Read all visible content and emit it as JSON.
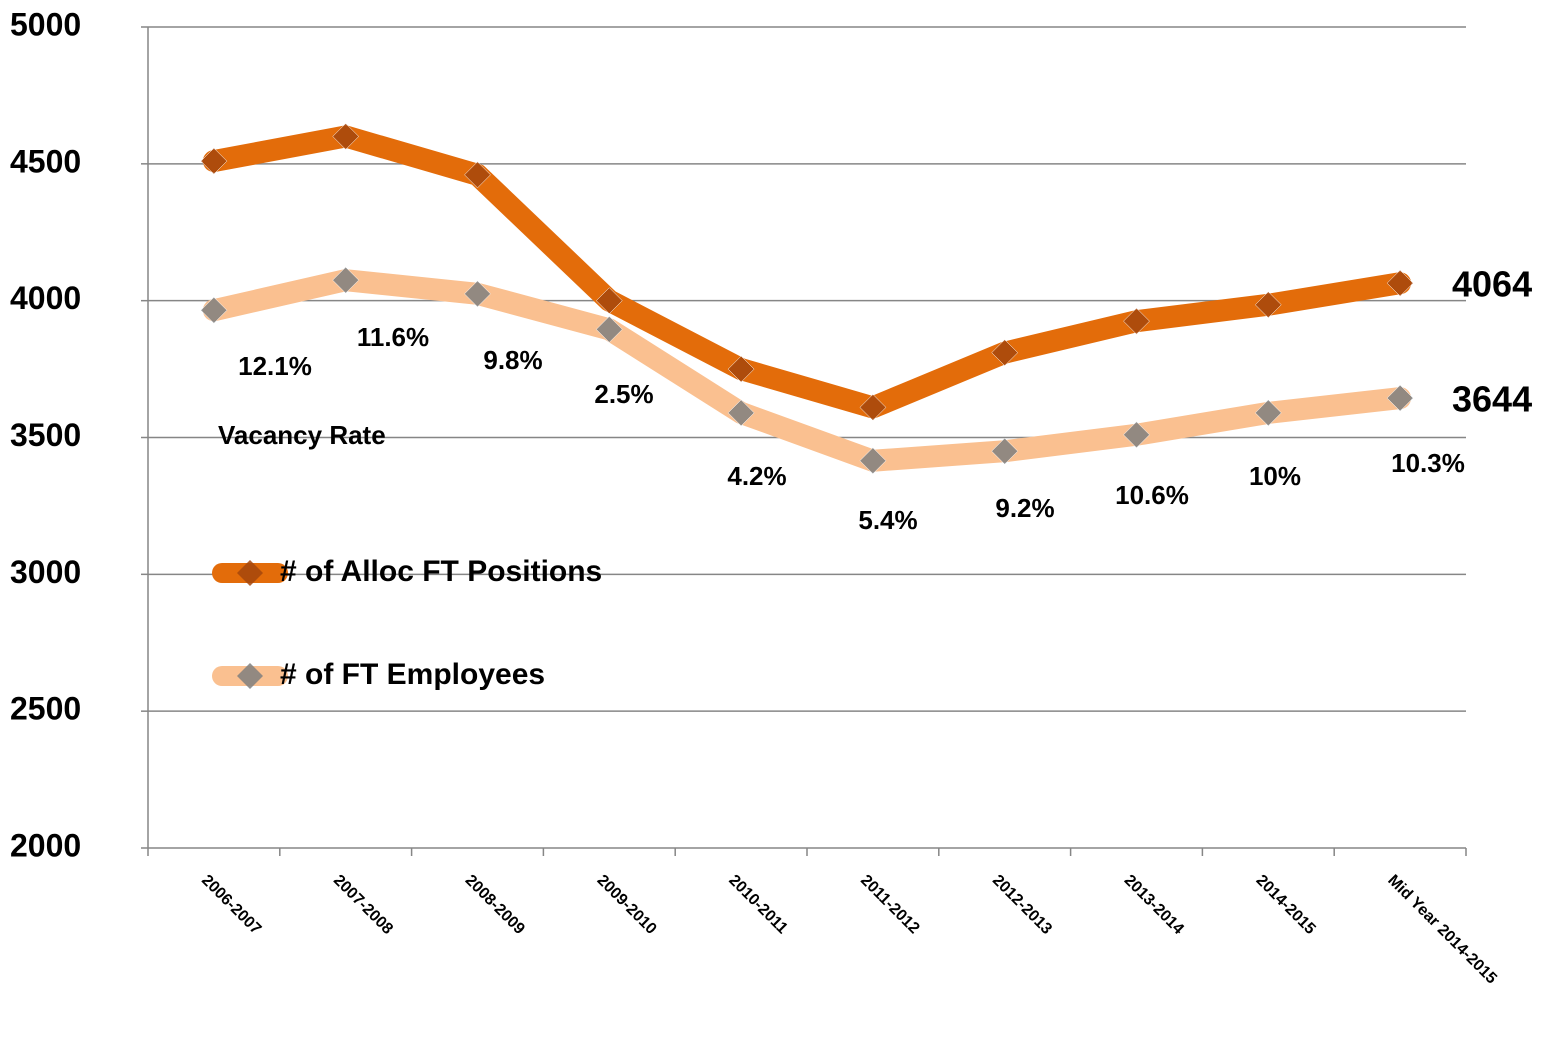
{
  "chart_data": {
    "type": "line",
    "categories": [
      "2006-2007",
      "2007-2008",
      "2008-2009",
      "2009-2010",
      "2010-2011",
      "2011-2012",
      "2012-2013",
      "2013-2014",
      "2014-2015",
      "Mid Year 2014-2015"
    ],
    "series": [
      {
        "name": "# of Alloc FT Positions",
        "color": "#e36c0a",
        "marker_color": "#a5470d",
        "values": [
          4510,
          4600,
          4460,
          4000,
          3750,
          3610,
          3810,
          3925,
          3985,
          4064
        ]
      },
      {
        "name": "# of FT Employees",
        "color": "#fac090",
        "marker_color": "#7f7f7f",
        "values": [
          3965,
          4075,
          4025,
          3895,
          3590,
          3415,
          3450,
          3510,
          3590,
          3644
        ]
      }
    ],
    "vacancy_label": "Vacancy Rate",
    "vacancy_rates": [
      "12.1%",
      "11.6%",
      "9.8%",
      "2.5%",
      "4.2%",
      "5.4%",
      "9.2%",
      "10.6%",
      "10%",
      "10.3%"
    ],
    "ylim": [
      2000,
      5000
    ],
    "yticks": [
      2000,
      2500,
      3000,
      3500,
      4000,
      4500,
      5000
    ],
    "grid": true
  }
}
